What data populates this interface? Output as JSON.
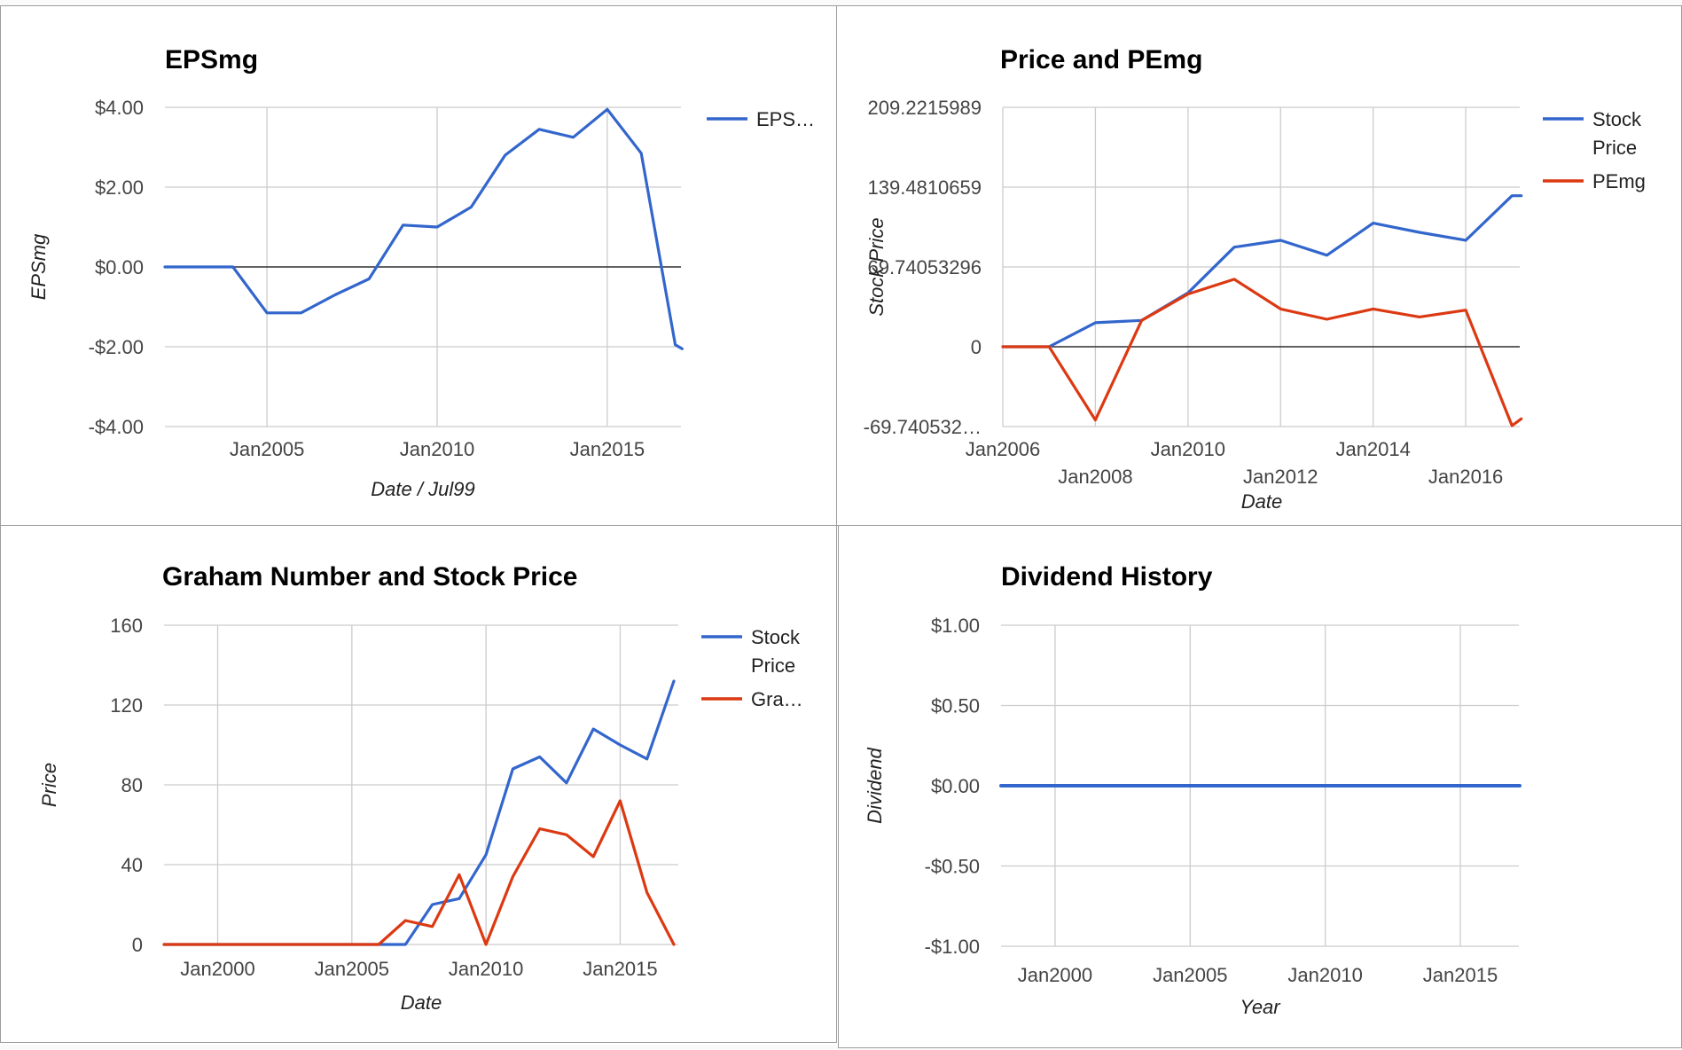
{
  "colors": {
    "blue": "#3366cc",
    "red": "#dc3912",
    "grid": "#cccccc",
    "baseline": "#333333"
  },
  "chart_data": [
    {
      "type": "line",
      "title": "EPSmg",
      "xlabel": "Date / Jul99",
      "ylabel": "EPSmg",
      "ylim": [
        -4,
        4
      ],
      "yticks": [
        "$4.00",
        "$2.00",
        "$0.00",
        "-$2.00",
        "-$4.00"
      ],
      "ytick_values": [
        4,
        2,
        0,
        -2,
        -4
      ],
      "xlim": [
        "2002-01",
        "2017-03"
      ],
      "xticks": [
        "Jan2005",
        "Jan2010",
        "Jan2015"
      ],
      "xtick_values": [
        2005,
        2010,
        2015
      ],
      "grid": true,
      "legend": "right",
      "series": [
        {
          "name": "EPS…",
          "color": "#3366cc",
          "x": [
            2002.0,
            2004.0,
            2005.0,
            2006.0,
            2007.0,
            2008.0,
            2009.0,
            2010.0,
            2011.0,
            2012.0,
            2013.0,
            2014.0,
            2015.0,
            2016.0,
            2017.0,
            2017.2
          ],
          "y": [
            0,
            0,
            -1.15,
            -1.15,
            -0.7,
            -0.3,
            1.05,
            1.0,
            1.5,
            2.8,
            3.45,
            3.25,
            3.95,
            2.85,
            -1.95,
            -2.05
          ]
        }
      ]
    },
    {
      "type": "line",
      "title": "Price and PEmg",
      "xlabel": "Date",
      "ylabel": "Stock Price",
      "ylim": [
        -69.74053296,
        209.2215989
      ],
      "yticks": [
        "209.2215989",
        "139.4810659",
        "69.74053296",
        "0",
        "-69.740532…"
      ],
      "ytick_values": [
        209.2215989,
        139.4810659,
        69.74053296,
        0,
        -69.74053296
      ],
      "xlim": [
        "2006-01",
        "2017-03"
      ],
      "xticks": [
        "Jan2006",
        "Jan2008",
        "Jan2010",
        "Jan2012",
        "Jan2014",
        "Jan2016"
      ],
      "xtick_values": [
        2006,
        2008,
        2010,
        2012,
        2014,
        2016
      ],
      "grid": true,
      "legend": "right",
      "series": [
        {
          "name": "Stock Price",
          "color": "#3366cc",
          "x": [
            2006.0,
            2007.0,
            2008.0,
            2009.0,
            2010.0,
            2011.0,
            2012.0,
            2013.0,
            2014.0,
            2015.0,
            2016.0,
            2017.0,
            2017.2
          ],
          "y": [
            0,
            0,
            21,
            23,
            47,
            87,
            93,
            80,
            108,
            100,
            93,
            132,
            132
          ]
        },
        {
          "name": "PEmg",
          "color": "#dc3912",
          "x": [
            2006.0,
            2007.0,
            2008.0,
            2009.0,
            2010.0,
            2011.0,
            2012.0,
            2013.0,
            2014.0,
            2015.0,
            2016.0,
            2017.0,
            2017.2
          ],
          "y": [
            0,
            0,
            -64,
            23,
            46,
            59,
            33,
            24,
            33,
            26,
            32,
            -69,
            -63
          ]
        }
      ]
    },
    {
      "type": "line",
      "title": "Graham Number and Stock Price",
      "xlabel": "Date",
      "ylabel": "Price",
      "ylim": [
        0,
        160
      ],
      "yticks": [
        "160",
        "120",
        "80",
        "40",
        "0"
      ],
      "ytick_values": [
        160,
        120,
        80,
        40,
        0
      ],
      "xlim": [
        "1998-01",
        "2017-03"
      ],
      "xticks": [
        "Jan2000",
        "Jan2005",
        "Jan2010",
        "Jan2015"
      ],
      "xtick_values": [
        2000,
        2005,
        2010,
        2015
      ],
      "grid": true,
      "legend": "right",
      "series": [
        {
          "name": "Stock Price",
          "color": "#3366cc",
          "x": [
            1998.0,
            2006.0,
            2007.0,
            2008.0,
            2009.0,
            2010.0,
            2011.0,
            2012.0,
            2013.0,
            2014.0,
            2015.0,
            2016.0,
            2017.0
          ],
          "y": [
            0,
            0,
            0,
            20,
            23,
            45,
            88,
            94,
            81,
            108,
            100,
            93,
            132
          ]
        },
        {
          "name": "Gra…",
          "color": "#dc3912",
          "x": [
            1998.0,
            2006.0,
            2007.0,
            2008.0,
            2009.0,
            2010.0,
            2011.0,
            2012.0,
            2013.0,
            2014.0,
            2015.0,
            2016.0,
            2017.0
          ],
          "y": [
            0,
            0,
            12,
            9,
            35,
            0,
            34,
            58,
            55,
            44,
            72,
            26,
            0
          ]
        }
      ]
    },
    {
      "type": "line",
      "title": "Dividend History",
      "xlabel": "Year",
      "ylabel": "Dividend",
      "ylim": [
        -1,
        1
      ],
      "yticks": [
        "$1.00",
        "$0.50",
        "$0.00",
        "-$0.50",
        "-$1.00"
      ],
      "ytick_values": [
        1,
        0.5,
        0,
        -0.5,
        -1
      ],
      "xlim": [
        "1998-01",
        "2017-03"
      ],
      "xticks": [
        "Jan2000",
        "Jan2005",
        "Jan2010",
        "Jan2015"
      ],
      "xtick_values": [
        2000,
        2005,
        2010,
        2015
      ],
      "grid": true,
      "legend": "none",
      "series": [
        {
          "color": "#3366cc",
          "x": [
            1998.0,
            2017.2
          ],
          "y": [
            0,
            0
          ]
        }
      ]
    }
  ]
}
